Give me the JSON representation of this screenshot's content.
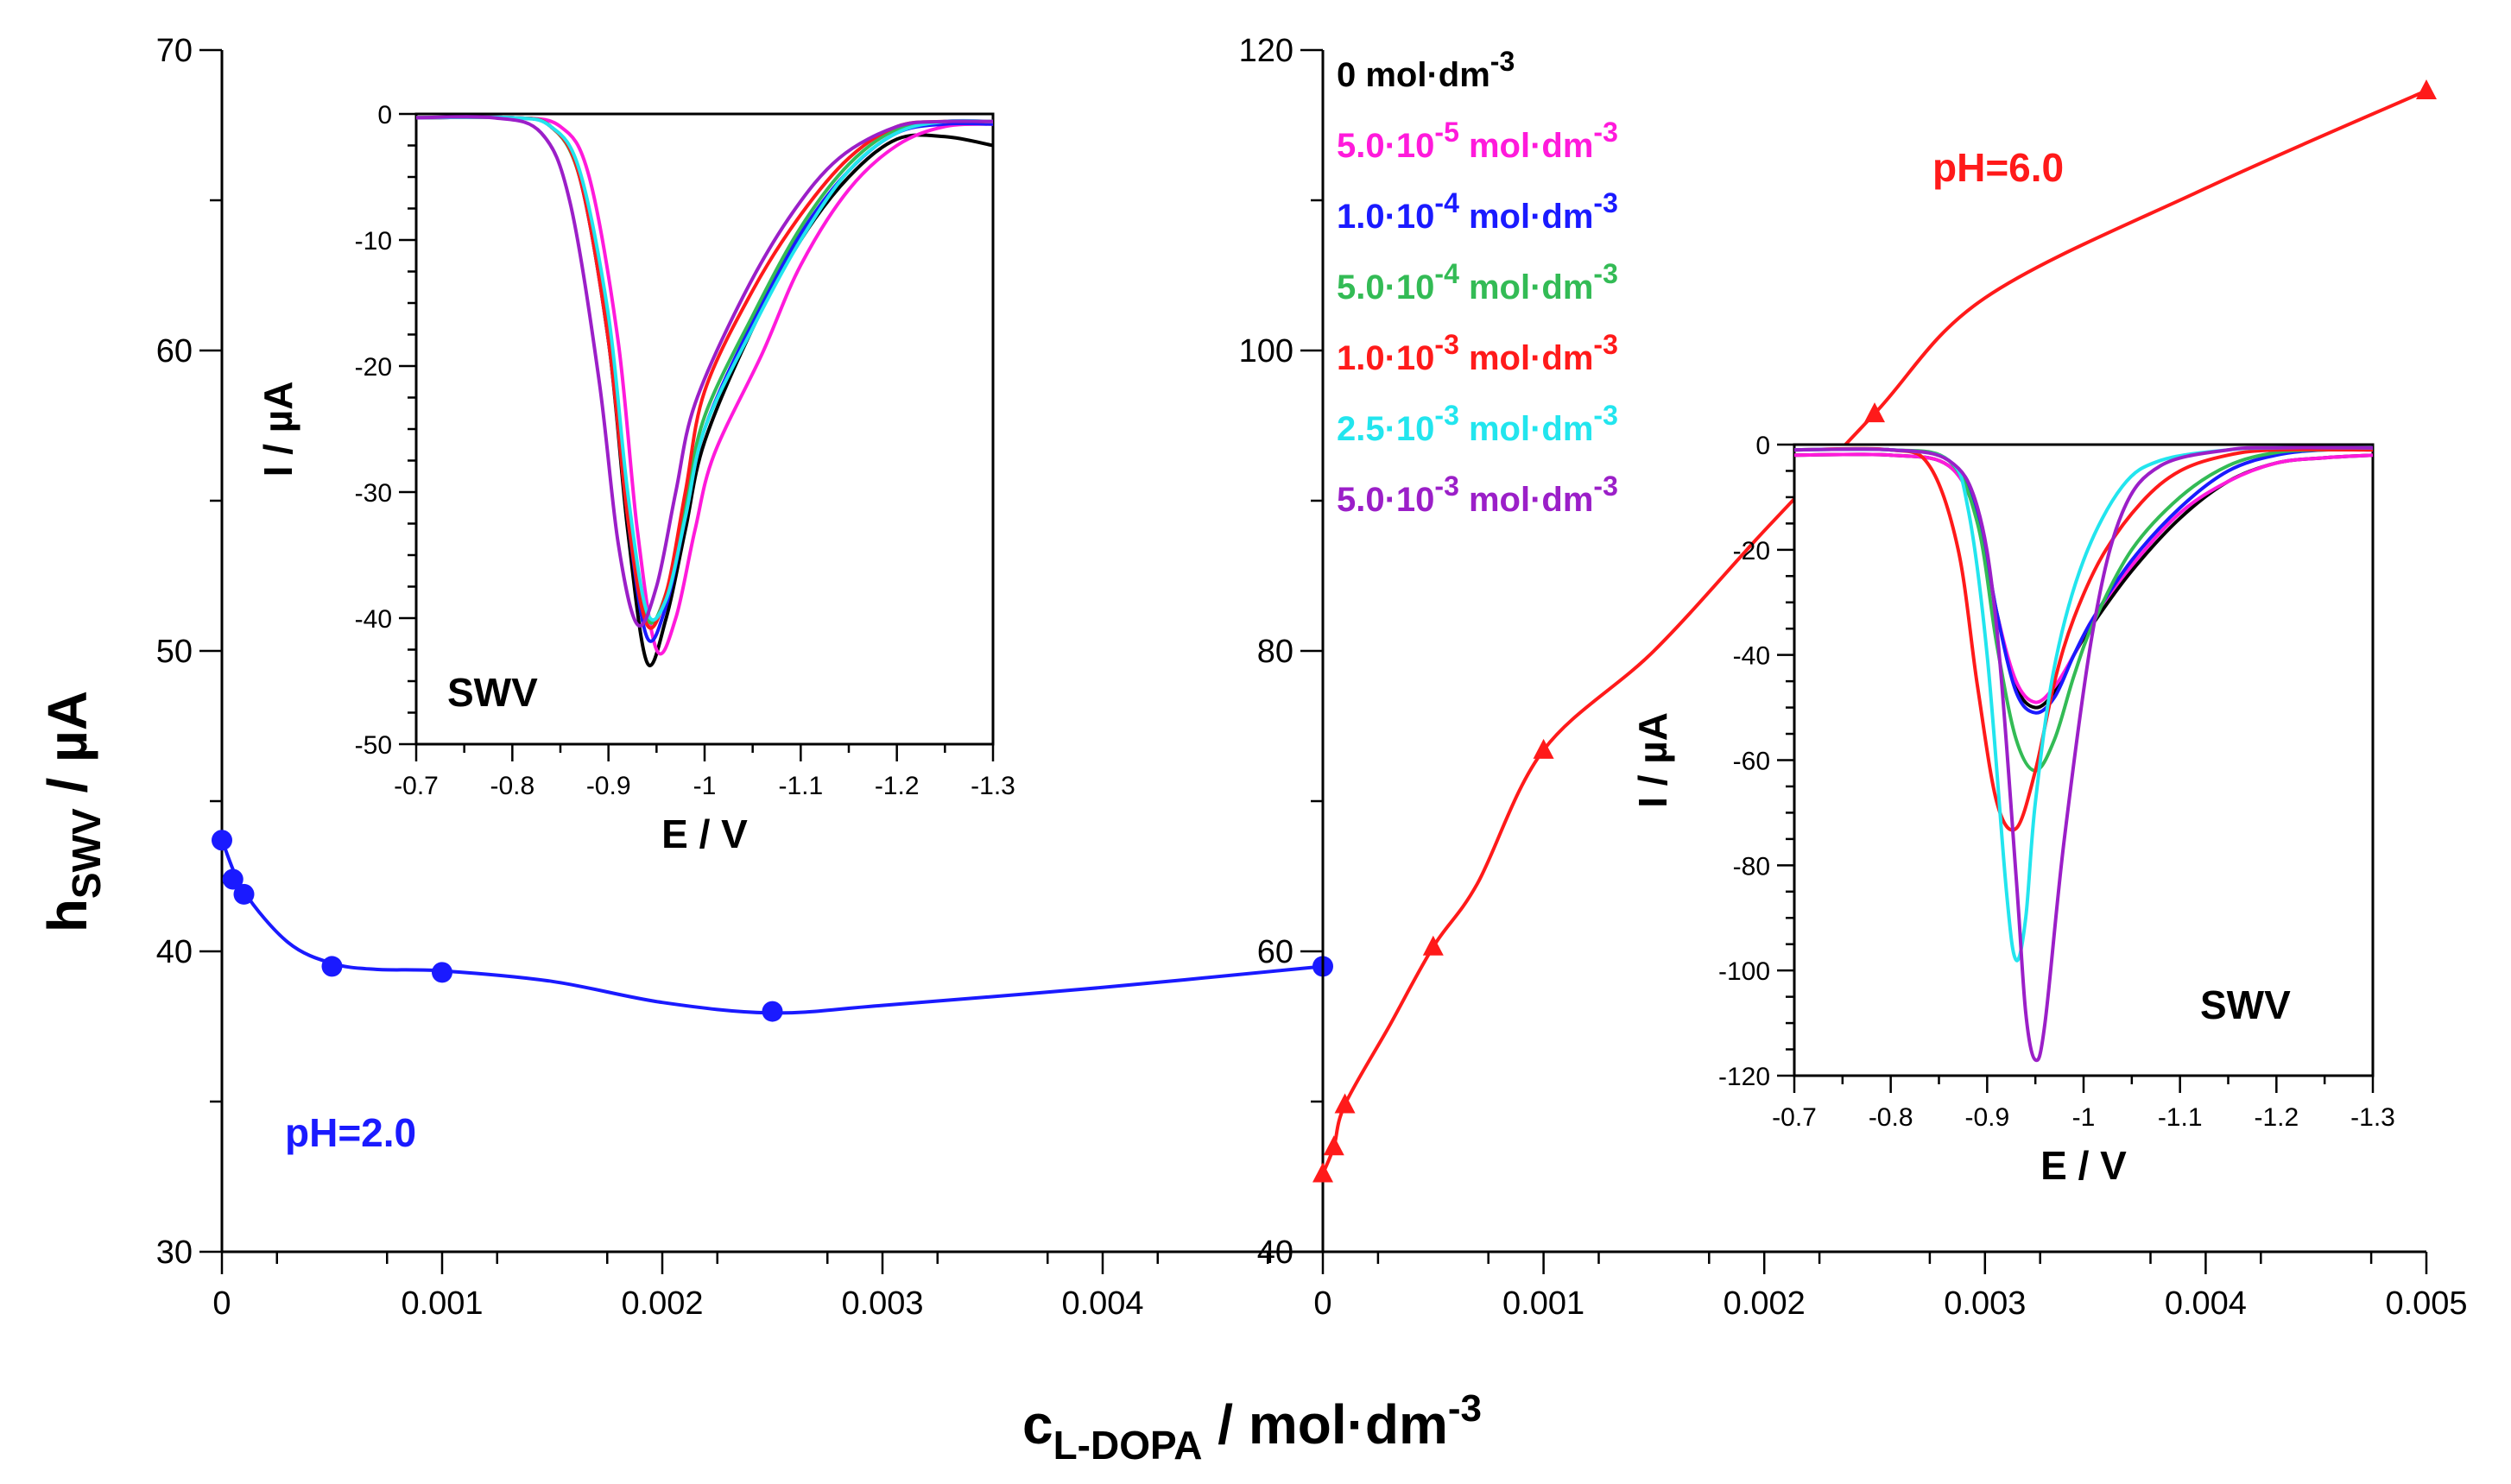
{
  "chart_data": [
    {
      "id": "main-left",
      "type": "line",
      "xlabel": "c",
      "xlabel_sub": "L-DOPA",
      "xlabel_unit": " / mol·dm",
      "xlabel_sup": "-3",
      "ylabel": "h",
      "ylabel_sub": "SWV",
      "ylabel_unit": " / µA",
      "xlim": [
        0,
        0.005
      ],
      "ylim": [
        30,
        70
      ],
      "x_ticks": [
        0,
        0.001,
        0.002,
        0.003,
        0.004
      ],
      "x_tick_labels": [
        "0",
        "0.001",
        "0.002",
        "0.003",
        "0.004"
      ],
      "y_ticks": [
        30,
        40,
        50,
        60,
        70
      ],
      "y_tick_labels": [
        "30",
        "40",
        "50",
        "60",
        "70"
      ],
      "series": [
        {
          "name": "pH=2.0",
          "color": "#1a1aff",
          "marker": "circle",
          "x": [
            0,
            5e-05,
            0.0001,
            0.0005,
            0.001,
            0.0025,
            0.005
          ],
          "y": [
            43.7,
            42.4,
            41.9,
            39.5,
            39.3,
            38.0,
            39.5
          ],
          "curve_x": [
            0,
            0.0001,
            0.0003,
            0.0005,
            0.0007,
            0.001,
            0.0015,
            0.002,
            0.0025,
            0.003,
            0.004,
            0.005
          ],
          "curve_y": [
            43.7,
            42.0,
            40.3,
            39.6,
            39.4,
            39.35,
            39.0,
            38.3,
            37.95,
            38.2,
            38.8,
            39.5
          ]
        }
      ],
      "annotation": "pH=2.0"
    },
    {
      "id": "main-right",
      "type": "line",
      "xlim": [
        0,
        0.005
      ],
      "ylim": [
        40,
        120
      ],
      "x_ticks": [
        0,
        0.001,
        0.002,
        0.003,
        0.004,
        0.005
      ],
      "x_tick_labels": [
        "0",
        "0.001",
        "0.002",
        "0.003",
        "0.004",
        "0.005"
      ],
      "y_ticks": [
        40,
        60,
        80,
        100,
        120
      ],
      "y_tick_labels": [
        "40",
        "60",
        "80",
        "100",
        "120"
      ],
      "series": [
        {
          "name": "pH=6.0",
          "color": "#ff1a1a",
          "marker": "triangle",
          "x": [
            0,
            5e-05,
            0.0001,
            0.0005,
            0.001,
            0.0025,
            0.005
          ],
          "y": [
            45.2,
            47.0,
            49.8,
            60.3,
            73.4,
            95.8,
            117.3
          ],
          "curve_x": [
            0,
            5e-05,
            0.0001,
            0.0003,
            0.0005,
            0.0007,
            0.001,
            0.0015,
            0.002,
            0.0025,
            0.003,
            0.004,
            0.005
          ],
          "curve_y": [
            45.2,
            47.0,
            49.8,
            55.0,
            60.3,
            64.5,
            73.4,
            80.0,
            88.0,
            95.8,
            103.5,
            110.8,
            117.3
          ]
        }
      ],
      "annotation": "pH=6.0"
    },
    {
      "id": "inset-left",
      "type": "line",
      "xlabel": "E / V",
      "ylabel": "I / µA",
      "label": "SWV",
      "xlim": [
        -0.7,
        -1.3
      ],
      "ylim": [
        -50,
        0
      ],
      "x_ticks": [
        -0.7,
        -0.8,
        -0.9,
        -1.0,
        -1.1,
        -1.2,
        -1.3
      ],
      "x_tick_labels": [
        "-0.7",
        "-0.8",
        "-0.9",
        "-1",
        "-1.1",
        "-1.2",
        "-1.3"
      ],
      "y_ticks": [
        -50,
        -40,
        -30,
        -20,
        -10,
        0
      ],
      "y_tick_labels": [
        "-50",
        "-40",
        "-30",
        "-20",
        "-10",
        "0"
      ],
      "series": [
        {
          "name": "0 mol·dm-3",
          "color": "#000000",
          "E": [
            -0.7,
            -0.8,
            -0.84,
            -0.87,
            -0.9,
            -0.92,
            -0.94,
            -0.96,
            -0.98,
            -1.0,
            -1.05,
            -1.1,
            -1.15,
            -1.2,
            -1.25,
            -1.3
          ],
          "I": [
            -0.3,
            -0.3,
            -1.0,
            -5.0,
            -18.0,
            -33.0,
            -43.5,
            -40.0,
            -33.0,
            -26.0,
            -17.0,
            -10.0,
            -5.0,
            -2.0,
            -1.8,
            -2.5
          ]
        },
        {
          "name": "5.0·10-5 mol·dm-3",
          "color": "#ff1adb",
          "E": [
            -0.7,
            -0.8,
            -0.85,
            -0.88,
            -0.91,
            -0.93,
            -0.95,
            -0.97,
            -0.99,
            -1.01,
            -1.06,
            -1.1,
            -1.15,
            -1.2,
            -1.25,
            -1.3
          ],
          "I": [
            -0.3,
            -0.3,
            -1.0,
            -5.0,
            -18.0,
            -33.0,
            -42.5,
            -40.0,
            -33.0,
            -27.0,
            -19.0,
            -12.0,
            -6.0,
            -2.5,
            -1.0,
            -0.8
          ]
        },
        {
          "name": "1.0·10-4 mol·dm-3",
          "color": "#1a1aff",
          "E": [
            -0.7,
            -0.8,
            -0.84,
            -0.87,
            -0.9,
            -0.92,
            -0.94,
            -0.96,
            -0.98,
            -1.0,
            -1.05,
            -1.1,
            -1.15,
            -1.2,
            -1.25,
            -1.3
          ],
          "I": [
            -0.3,
            -0.3,
            -1.0,
            -5.0,
            -18.0,
            -32.0,
            -41.5,
            -39.0,
            -32.0,
            -25.0,
            -16.5,
            -9.5,
            -4.5,
            -1.5,
            -0.8,
            -0.8
          ]
        },
        {
          "name": "5.0·10-4 mol·dm-3",
          "color": "#33bb55",
          "E": [
            -0.7,
            -0.8,
            -0.84,
            -0.87,
            -0.9,
            -0.92,
            -0.94,
            -0.96,
            -0.98,
            -1.0,
            -1.05,
            -1.1,
            -1.15,
            -1.2,
            -1.25,
            -1.3
          ],
          "I": [
            -0.3,
            -0.3,
            -1.0,
            -5.0,
            -17.0,
            -31.0,
            -40.0,
            -38.0,
            -31.0,
            -24.0,
            -16.0,
            -9.0,
            -4.0,
            -1.2,
            -0.6,
            -0.6
          ]
        },
        {
          "name": "1.0·10-3 mol·dm-3",
          "color": "#ff1a1a",
          "E": [
            -0.7,
            -0.8,
            -0.84,
            -0.87,
            -0.9,
            -0.92,
            -0.94,
            -0.96,
            -0.98,
            -1.0,
            -1.05,
            -1.1,
            -1.15,
            -1.2,
            -1.25,
            -1.3
          ],
          "I": [
            -0.3,
            -0.3,
            -1.0,
            -5.0,
            -18.0,
            -32.0,
            -40.5,
            -38.0,
            -30.0,
            -22.0,
            -14.0,
            -8.0,
            -3.5,
            -1.0,
            -0.6,
            -0.6
          ]
        },
        {
          "name": "2.5·10-3 mol·dm-3",
          "color": "#22e5ee",
          "E": [
            -0.7,
            -0.8,
            -0.84,
            -0.87,
            -0.9,
            -0.92,
            -0.94,
            -0.96,
            -0.98,
            -1.0,
            -1.05,
            -1.1,
            -1.15,
            -1.2,
            -1.25,
            -1.3
          ],
          "I": [
            -0.3,
            -0.3,
            -1.0,
            -4.5,
            -16.0,
            -30.0,
            -39.5,
            -38.5,
            -32.0,
            -25.0,
            -17.0,
            -10.0,
            -4.5,
            -1.5,
            -0.6,
            -0.6
          ]
        },
        {
          "name": "5.0·10-3 mol·dm-3",
          "color": "#9b1fc8",
          "E": [
            -0.7,
            -0.78,
            -0.83,
            -0.86,
            -0.89,
            -0.91,
            -0.93,
            -0.95,
            -0.97,
            -0.99,
            -1.04,
            -1.09,
            -1.14,
            -1.2,
            -1.25,
            -1.3
          ],
          "I": [
            -0.3,
            -0.3,
            -1.5,
            -7.0,
            -21.0,
            -34.0,
            -40.5,
            -37.5,
            -30.0,
            -23.0,
            -14.5,
            -8.0,
            -3.5,
            -1.0,
            -0.6,
            -0.6
          ]
        }
      ]
    },
    {
      "id": "inset-right",
      "type": "line",
      "xlabel": "E / V",
      "ylabel": "I / µA",
      "label": "SWV",
      "xlim": [
        -0.7,
        -1.3
      ],
      "ylim": [
        -120,
        0
      ],
      "x_ticks": [
        -0.7,
        -0.8,
        -0.9,
        -1.0,
        -1.1,
        -1.2,
        -1.3
      ],
      "x_tick_labels": [
        "-0.7",
        "-0.8",
        "-0.9",
        "-1",
        "-1.1",
        "-1.2",
        "-1.3"
      ],
      "y_ticks": [
        -120,
        -100,
        -80,
        -60,
        -40,
        -20,
        0
      ],
      "y_tick_labels": [
        "-120",
        "-100",
        "-80",
        "-60",
        "-40",
        "-20",
        "0"
      ],
      "series": [
        {
          "name": "0 mol·dm-3",
          "color": "#000000",
          "E": [
            -0.7,
            -0.8,
            -0.86,
            -0.89,
            -0.91,
            -0.93,
            -0.95,
            -0.97,
            -0.99,
            -1.01,
            -1.05,
            -1.1,
            -1.15,
            -1.2,
            -1.25,
            -1.3
          ],
          "I": [
            -2.0,
            -2.0,
            -4.0,
            -14.0,
            -32.0,
            -46.0,
            -50.0,
            -47.0,
            -40.0,
            -34.0,
            -24.0,
            -14.0,
            -7.0,
            -3.5,
            -2.5,
            -2.0
          ]
        },
        {
          "name": "5.0·10-5 mol·dm-3",
          "color": "#ff1adb",
          "E": [
            -0.7,
            -0.8,
            -0.86,
            -0.89,
            -0.91,
            -0.93,
            -0.95,
            -0.97,
            -0.99,
            -1.01,
            -1.05,
            -1.1,
            -1.15,
            -1.2,
            -1.25,
            -1.3
          ],
          "I": [
            -2.0,
            -2.0,
            -4.0,
            -14.0,
            -32.0,
            -45.0,
            -49.0,
            -46.0,
            -40.0,
            -33.0,
            -23.0,
            -13.0,
            -7.0,
            -3.5,
            -2.5,
            -2.0
          ]
        },
        {
          "name": "1.0·10-4 mol·dm-3",
          "color": "#1a1aff",
          "E": [
            -0.7,
            -0.8,
            -0.86,
            -0.89,
            -0.91,
            -0.93,
            -0.95,
            -0.97,
            -0.99,
            -1.01,
            -1.05,
            -1.1,
            -1.15,
            -1.2,
            -1.25,
            -1.3
          ],
          "I": [
            -1.0,
            -1.0,
            -3.0,
            -13.0,
            -32.0,
            -47.0,
            -51.0,
            -48.0,
            -40.0,
            -33.0,
            -22.0,
            -12.0,
            -5.0,
            -2.0,
            -1.0,
            -1.0
          ]
        },
        {
          "name": "5.0·10-4 mol·dm-3",
          "color": "#33bb55",
          "E": [
            -0.7,
            -0.8,
            -0.86,
            -0.89,
            -0.91,
            -0.93,
            -0.95,
            -0.97,
            -0.99,
            -1.01,
            -1.05,
            -1.1,
            -1.15,
            -1.2,
            -1.25,
            -1.3
          ],
          "I": [
            -1.0,
            -1.0,
            -3.0,
            -15.0,
            -38.0,
            -56.0,
            -62.0,
            -56.0,
            -44.0,
            -34.0,
            -20.0,
            -10.0,
            -4.0,
            -1.5,
            -1.0,
            -1.0
          ]
        },
        {
          "name": "1.0·10-3 mol·dm-3",
          "color": "#ff1a1a",
          "E": [
            -0.7,
            -0.8,
            -0.84,
            -0.87,
            -0.89,
            -0.91,
            -0.93,
            -0.95,
            -0.97,
            -0.99,
            -1.02,
            -1.06,
            -1.1,
            -1.15,
            -1.2,
            -1.3
          ],
          "I": [
            -1.0,
            -1.0,
            -4.0,
            -20.0,
            -46.0,
            -68.0,
            -73.0,
            -62.0,
            -45.0,
            -33.0,
            -21.0,
            -11.0,
            -5.0,
            -2.0,
            -1.0,
            -1.0
          ]
        },
        {
          "name": "2.5·10-3 mol·dm-3",
          "color": "#22e5ee",
          "E": [
            -0.7,
            -0.8,
            -0.86,
            -0.88,
            -0.9,
            -0.92,
            -0.93,
            -0.94,
            -0.95,
            -0.97,
            -1.0,
            -1.04,
            -1.08,
            -1.15,
            -1.2,
            -1.3
          ],
          "I": [
            -1.0,
            -1.0,
            -3.0,
            -12.0,
            -40.0,
            -85.0,
            -98.0,
            -90.0,
            -68.0,
            -42.0,
            -22.0,
            -8.0,
            -3.0,
            -1.0,
            -0.6,
            -0.6
          ]
        },
        {
          "name": "5.0·10-3 mol·dm-3",
          "color": "#9b1fc8",
          "E": [
            -0.7,
            -0.8,
            -0.86,
            -0.89,
            -0.91,
            -0.93,
            -0.94,
            -0.95,
            -0.96,
            -0.98,
            -1.01,
            -1.04,
            -1.08,
            -1.15,
            -1.2,
            -1.3
          ],
          "I": [
            -1.0,
            -1.0,
            -3.0,
            -12.0,
            -35.0,
            -82.0,
            -108.0,
            -117.0,
            -110.0,
            -75.0,
            -35.0,
            -13.0,
            -4.0,
            -1.0,
            -0.6,
            -0.6
          ]
        }
      ]
    }
  ],
  "legend": {
    "placement": "top-center",
    "items": [
      {
        "num": "0",
        "exp": "",
        "unit": " mol·dm",
        "unit_exp": "-3",
        "color": "#000000"
      },
      {
        "num": "5.0·10",
        "exp": "-5",
        "unit": " mol·dm",
        "unit_exp": "-3",
        "color": "#ff1adb"
      },
      {
        "num": "1.0·10",
        "exp": "-4",
        "unit": " mol·dm",
        "unit_exp": "-3",
        "color": "#1a1aff"
      },
      {
        "num": "5.0·10",
        "exp": "-4",
        "unit": " mol·dm",
        "unit_exp": "-3",
        "color": "#33bb55"
      },
      {
        "num": "1.0·10",
        "exp": "-3",
        "unit": " mol·dm",
        "unit_exp": "-3",
        "color": "#ff1a1a"
      },
      {
        "num": "2.5·10",
        "exp": "-3",
        "unit": " mol·dm",
        "unit_exp": "-3",
        "color": "#22e5ee"
      },
      {
        "num": "5.0·10",
        "exp": "-3",
        "unit": " mol·dm",
        "unit_exp": "-3",
        "color": "#9b1fc8"
      }
    ]
  }
}
